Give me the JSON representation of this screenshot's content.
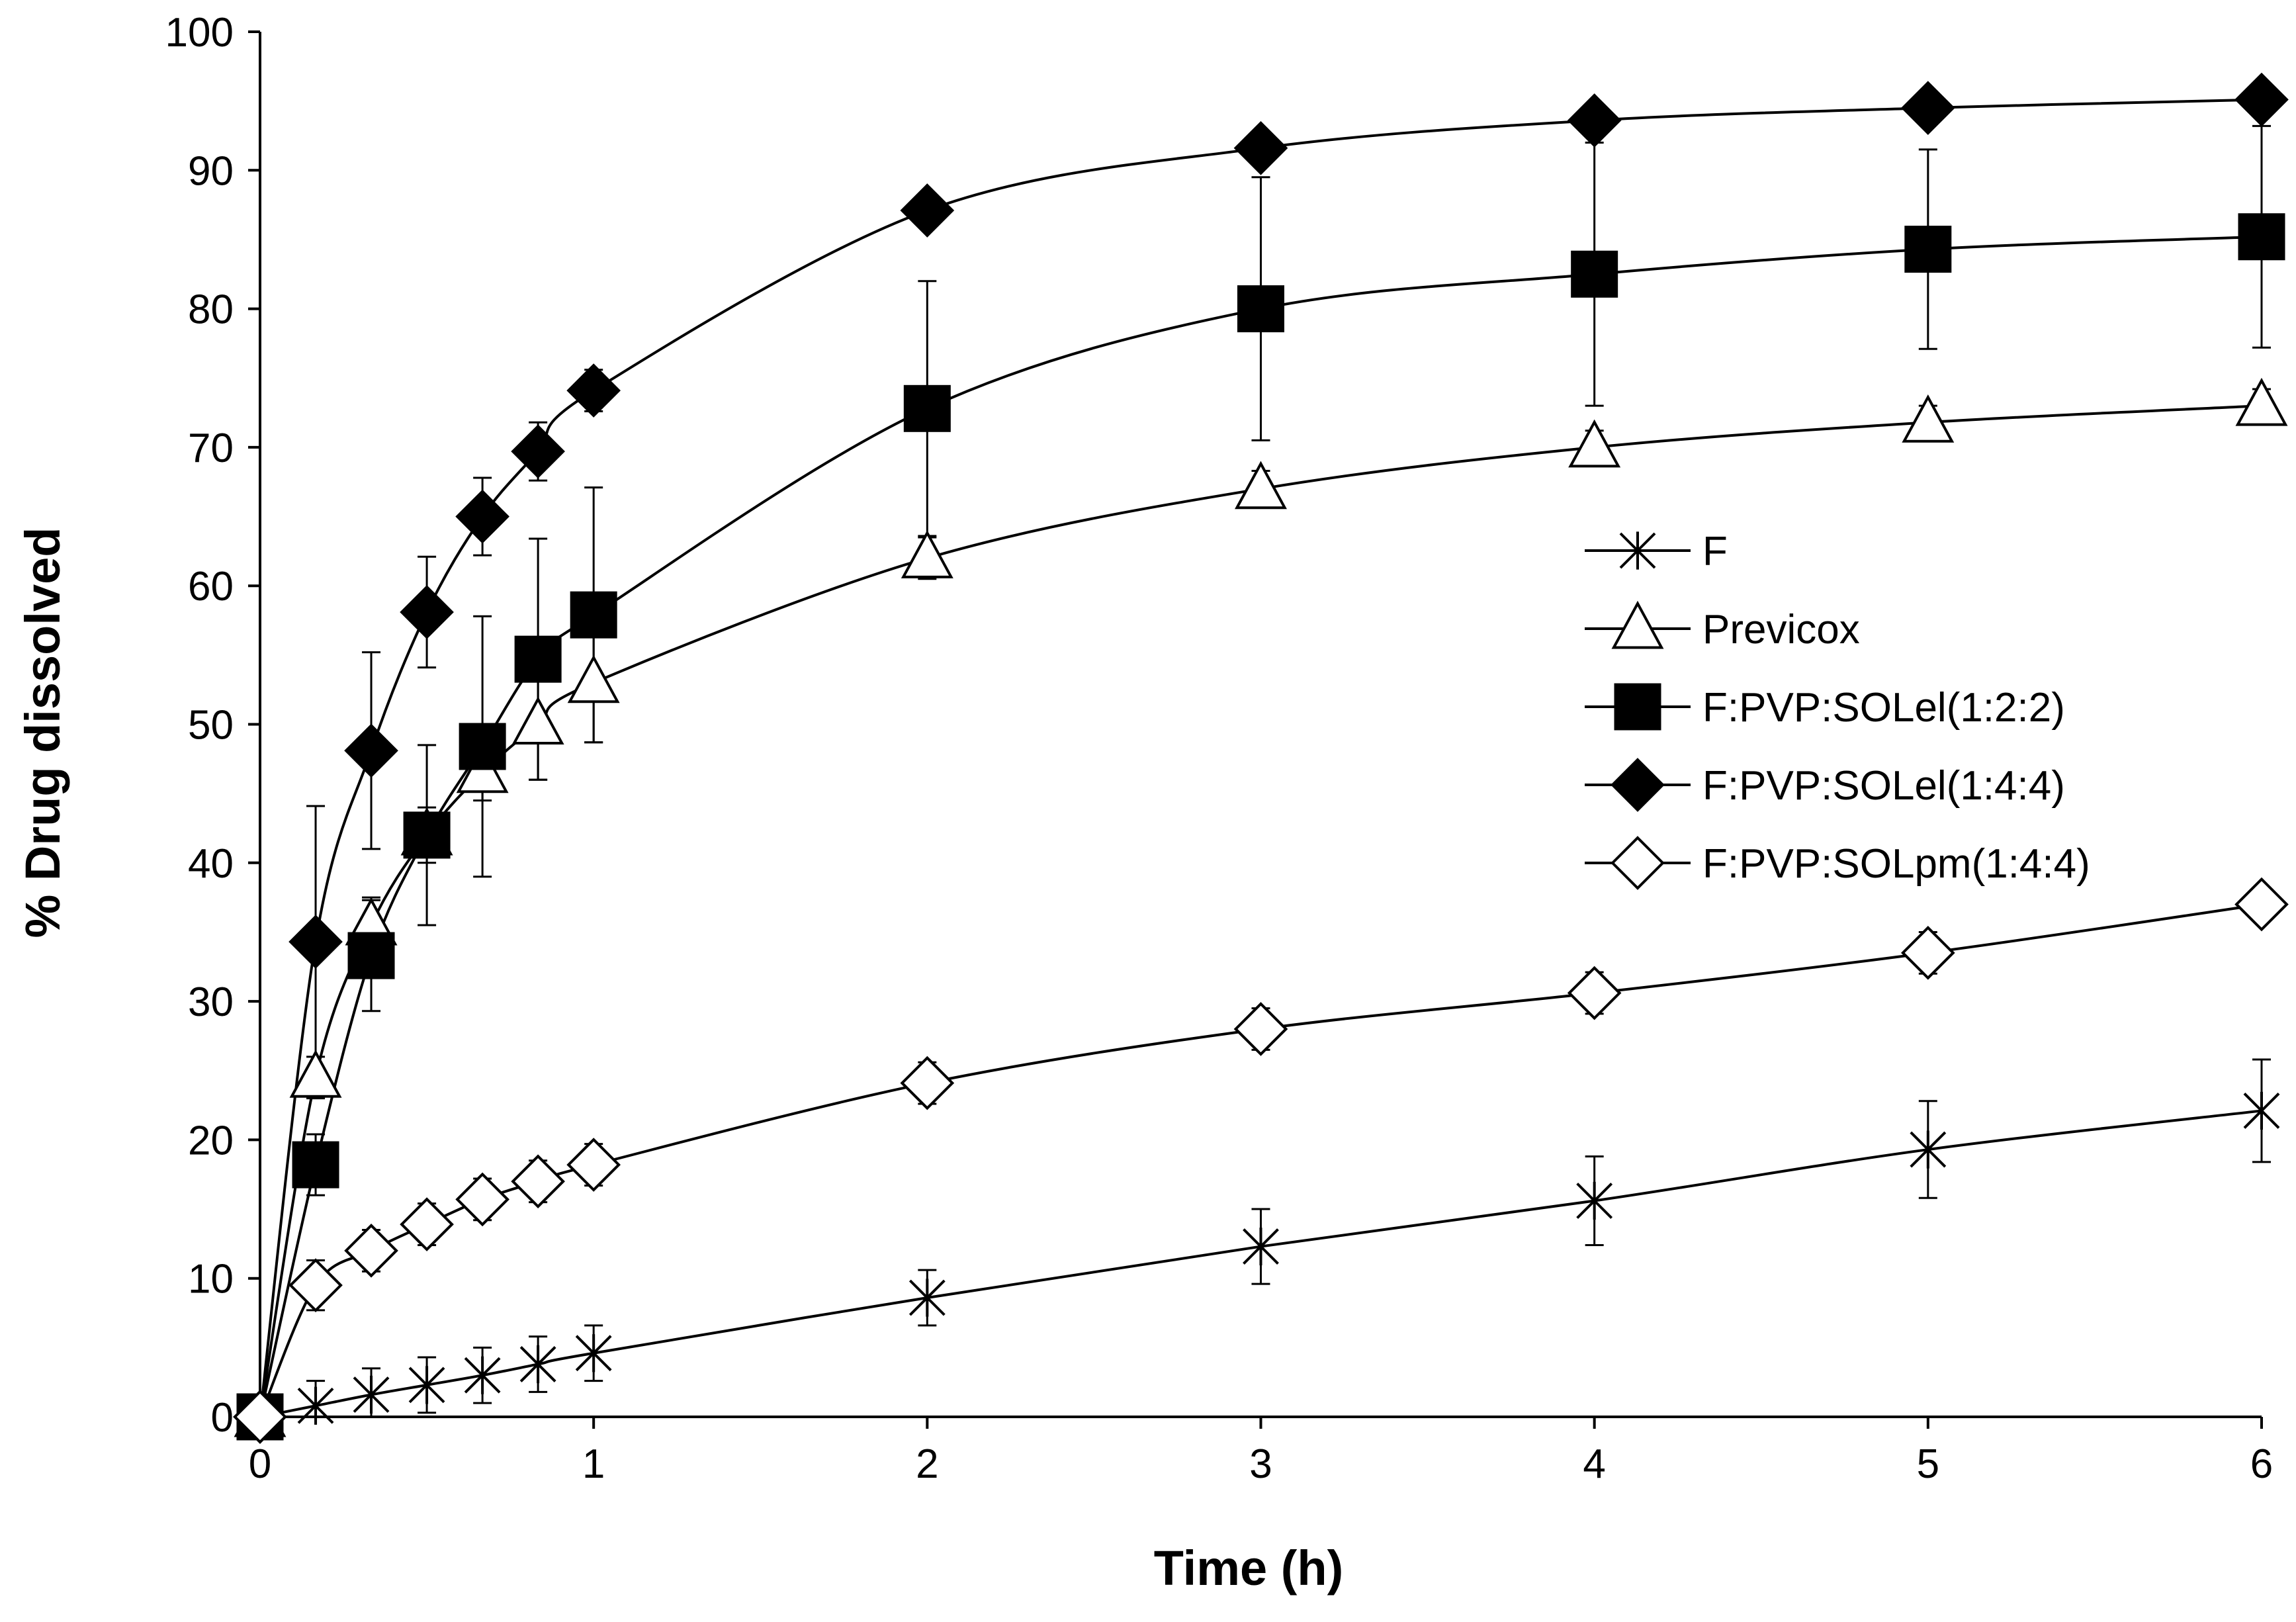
{
  "chart_data": {
    "type": "line",
    "title": "",
    "xlabel": "Time (h)",
    "ylabel": "% Drug dissolved",
    "xlim": [
      0,
      6
    ],
    "ylim": [
      0,
      100
    ],
    "xticks": [
      0,
      1,
      2,
      3,
      4,
      5,
      6
    ],
    "yticks": [
      0,
      10,
      20,
      30,
      40,
      50,
      60,
      70,
      80,
      90,
      100
    ],
    "grid": false,
    "legend_position": "right-center",
    "series": [
      {
        "name": "F",
        "marker": "asterisk",
        "x": [
          0,
          0.1667,
          0.3333,
          0.5,
          0.6667,
          0.8333,
          1,
          2,
          3,
          4,
          5,
          6
        ],
        "y": [
          0,
          0.8,
          1.6,
          2.3,
          3.0,
          3.8,
          4.6,
          8.6,
          12.3,
          15.6,
          19.3,
          22.1
        ],
        "err": [
          0,
          1.8,
          1.9,
          2.0,
          2.0,
          2.0,
          2.0,
          2.0,
          2.7,
          3.2,
          3.5,
          3.7
        ]
      },
      {
        "name": "Previcox",
        "marker": "triangle-open",
        "x": [
          0,
          0.1667,
          0.3333,
          0.5,
          0.6667,
          0.8333,
          1,
          2,
          3,
          4,
          5,
          6
        ],
        "y": [
          0,
          24.5,
          35.5,
          42.0,
          46.5,
          50.0,
          53.0,
          62.0,
          67.0,
          70.0,
          71.8,
          73.0
        ],
        "err": [
          0,
          1.5,
          2.0,
          2.0,
          2.0,
          4.0,
          4.3,
          1.5,
          1.3,
          1.2,
          1.2,
          1.2
        ]
      },
      {
        "name": "F:PVP:SOLel(1:2:2)",
        "marker": "square-filled",
        "x": [
          0,
          0.1667,
          0.3333,
          0.5,
          0.6667,
          0.8333,
          1,
          2,
          3,
          4,
          5,
          6
        ],
        "y": [
          0,
          18.2,
          33.3,
          42.0,
          48.4,
          54.7,
          57.9,
          72.8,
          80.0,
          82.5,
          84.3,
          85.2
        ],
        "err": [
          0,
          2.2,
          4.0,
          6.5,
          9.4,
          8.7,
          9.2,
          9.2,
          9.5,
          9.5,
          7.2,
          8.0
        ]
      },
      {
        "name": "F:PVP:SOLel(1:4:4)",
        "marker": "diamond-filled",
        "x": [
          0,
          0.1667,
          0.3333,
          0.5,
          0.6667,
          0.8333,
          1,
          2,
          3,
          4,
          5,
          6
        ],
        "y": [
          0,
          34.3,
          48.1,
          58.1,
          65.0,
          69.7,
          74.1,
          87.1,
          91.6,
          93.6,
          94.5,
          95.1
        ],
        "err": [
          0,
          9.8,
          7.1,
          4.0,
          2.8,
          2.1,
          1.5,
          0,
          0,
          0,
          0,
          0
        ]
      },
      {
        "name": "F:PVP:SOLpm(1:4:4)",
        "marker": "diamond-open",
        "x": [
          0,
          0.1667,
          0.3333,
          0.5,
          0.6667,
          0.8333,
          1,
          2,
          3,
          4,
          5,
          6
        ],
        "y": [
          0,
          9.5,
          12.0,
          13.9,
          15.7,
          17.0,
          18.2,
          24.1,
          28.0,
          30.6,
          33.5,
          37.0
        ],
        "err": [
          0,
          1.8,
          1.5,
          1.5,
          1.5,
          1.5,
          1.5,
          1.5,
          1.5,
          1.5,
          1.5,
          1.2
        ]
      }
    ]
  }
}
